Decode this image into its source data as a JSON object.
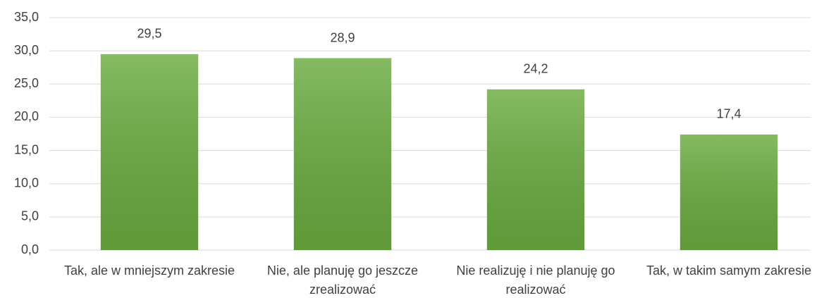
{
  "chart_data": {
    "type": "bar",
    "categories": [
      "Tak, ale w mniejszym zakresie",
      "Nie, ale planuję go jeszcze zrealizować",
      "Nie realizuję i nie planuję go realizować",
      "Tak, w takim samym zakresie"
    ],
    "values": [
      29.5,
      28.9,
      24.2,
      17.4
    ],
    "value_labels": [
      "29,5",
      "28,9",
      "24,2",
      "17,4"
    ],
    "color": "#6aab3f",
    "ylim": [
      0,
      35
    ],
    "yticks": [
      {
        "value": 0,
        "label": "0,0"
      },
      {
        "value": 5,
        "label": "5,0"
      },
      {
        "value": 10,
        "label": "10,0"
      },
      {
        "value": 15,
        "label": "15,0"
      },
      {
        "value": 20,
        "label": "20,0"
      },
      {
        "value": 25,
        "label": "25,0"
      },
      {
        "value": 30,
        "label": "30,0"
      },
      {
        "value": 35,
        "label": "35,0"
      }
    ],
    "grid": true
  }
}
